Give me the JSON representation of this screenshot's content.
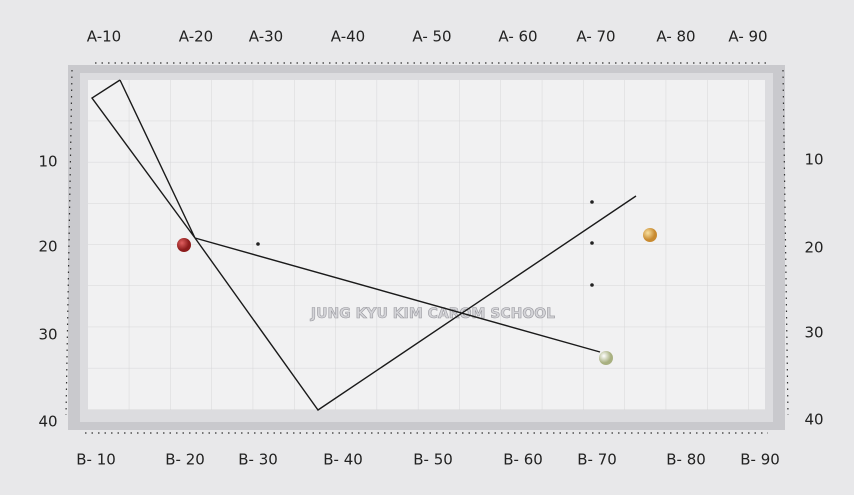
{
  "top_labels": [
    "A-10",
    "A-20",
    "A-30",
    "A-40",
    "A- 50",
    "A- 60",
    "A- 70",
    "A- 80",
    "A- 90"
  ],
  "bottom_labels": [
    "B- 10",
    "B- 20",
    "B- 30",
    "B- 40",
    "B- 50",
    "B- 60",
    "B- 70",
    "B- 80",
    "B- 90"
  ],
  "left_labels": [
    "10",
    "20",
    "30",
    "40"
  ],
  "right_labels": [
    "10",
    "20",
    "30",
    "40"
  ],
  "watermark": "JUNG KYU KIM CAROM SCHOOL"
}
